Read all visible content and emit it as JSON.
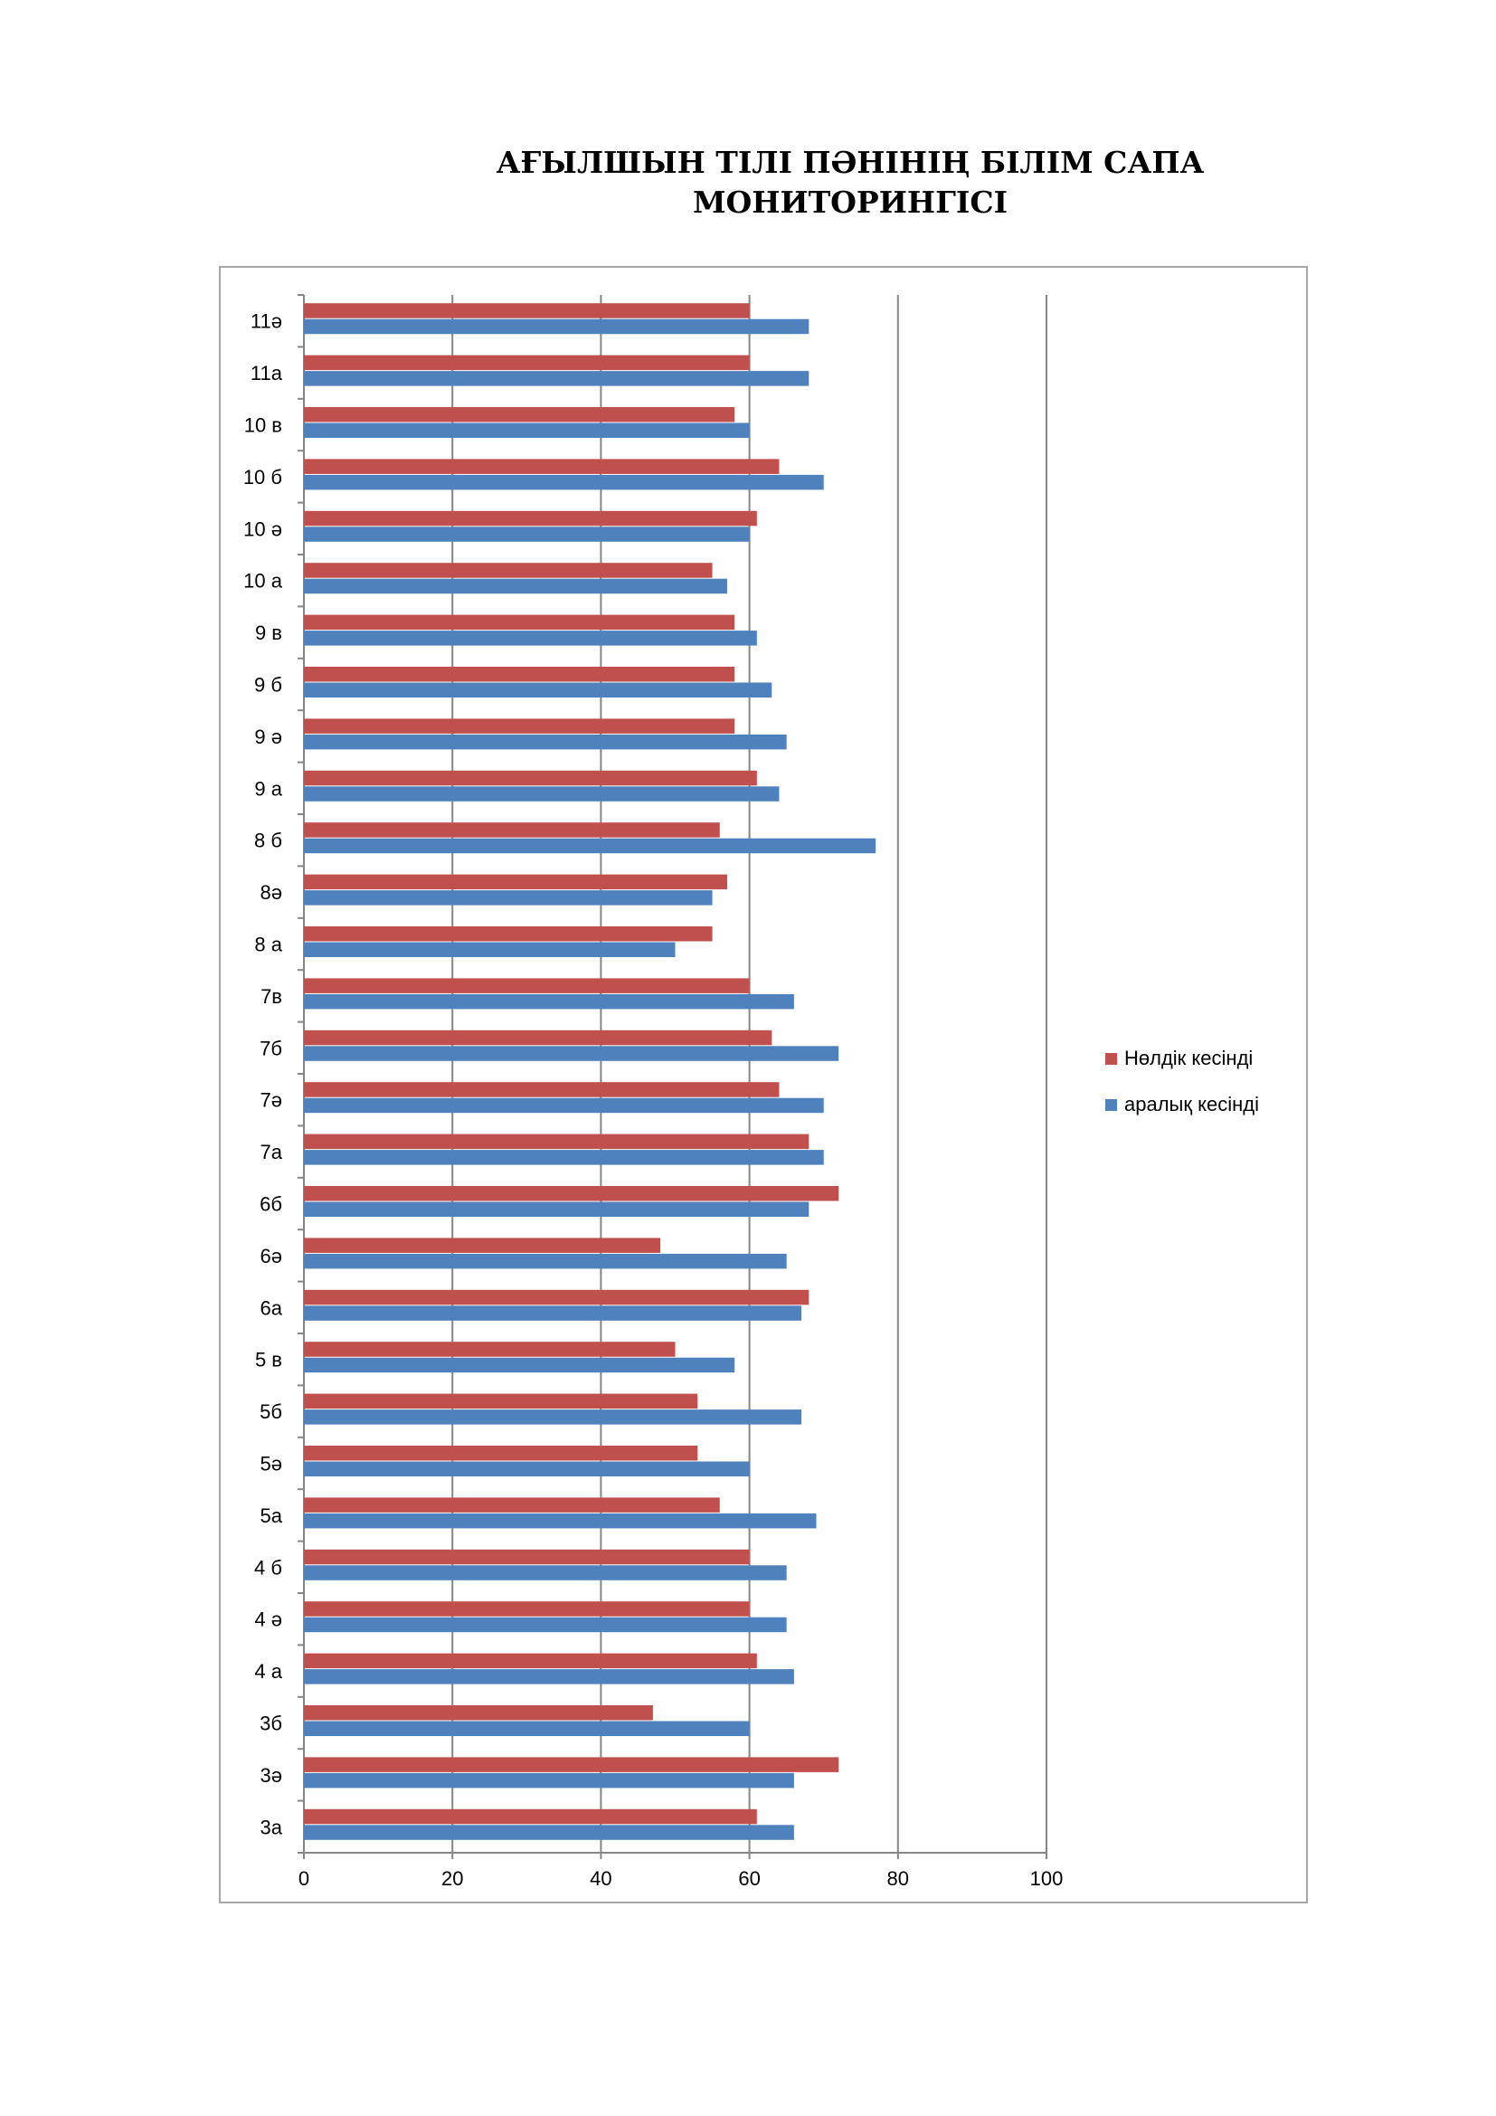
{
  "page": {
    "title_line1": "АҒЫЛШЫН ТІЛІ ПӘНІНІҢ БІЛІМ САПА",
    "title_line2": "МОНИТОРИНГІСІ"
  },
  "chart_data": {
    "type": "bar",
    "orientation": "horizontal",
    "title": "АҒЫЛШЫН ТІЛІ ПӘНІНІҢ БІЛІМ САПА МОНИТОРИНГІСІ",
    "xlabel": "",
    "ylabel": "",
    "xlim": [
      0,
      100
    ],
    "xticks": [
      0,
      20,
      40,
      60,
      80,
      100
    ],
    "grid": "vertical major gridlines",
    "legend_position": "right",
    "categories": [
      "11ә",
      "11а",
      "10 в",
      "10 б",
      "10 ә",
      "10 а",
      "9 в",
      "9 б",
      "9 ә",
      "9 а",
      "8 б",
      "8ә",
      "8 а",
      "7в",
      "7б",
      "7ә",
      "7а",
      "6б",
      "6ә",
      "6а",
      "5 в",
      "5б",
      "5ә",
      "5а",
      "4 б",
      "4 ә",
      "4 а",
      "3б",
      "3ә",
      "3а"
    ],
    "series": [
      {
        "name": "Нөлдік кесінді",
        "color": "#c0504d",
        "values": [
          60,
          60,
          58,
          64,
          61,
          55,
          58,
          58,
          58,
          61,
          56,
          57,
          55,
          60,
          63,
          64,
          68,
          72,
          48,
          68,
          50,
          53,
          53,
          56,
          60,
          60,
          61,
          47,
          72,
          61
        ]
      },
      {
        "name": "аралық кесінді",
        "color": "#4f81bd",
        "values": [
          68,
          68,
          60,
          70,
          60,
          57,
          61,
          63,
          65,
          64,
          77,
          55,
          50,
          66,
          72,
          70,
          70,
          68,
          65,
          67,
          58,
          67,
          60,
          69,
          65,
          65,
          66,
          60,
          66,
          66
        ]
      }
    ],
    "colors": {
      "grid": "#868686",
      "axis": "#868686",
      "frame": "#a6a6a6"
    }
  }
}
